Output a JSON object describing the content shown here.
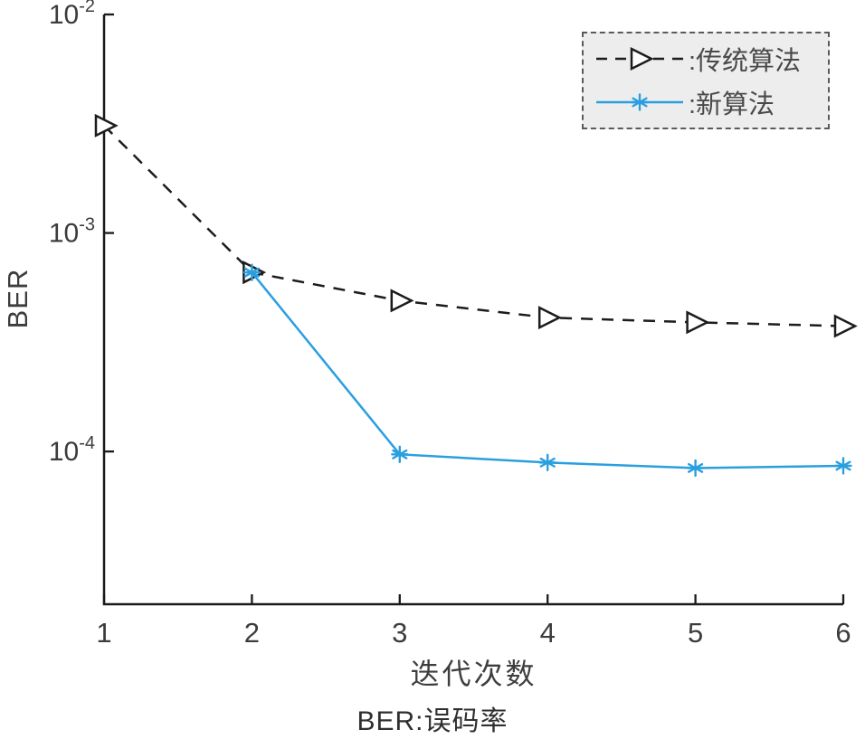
{
  "figure": {
    "y_axis_label": "BER",
    "x_axis_label": "迭代次数",
    "caption": "BER:误码率"
  },
  "legend": {
    "items": [
      {
        "label": ":传统算法",
        "series": "traditional"
      },
      {
        "label": ":新算法",
        "series": "new"
      }
    ]
  },
  "chart_data": {
    "type": "line",
    "title": "",
    "xlabel": "迭代次数",
    "ylabel": "BER",
    "caption": "BER:误码率",
    "yscale": "log",
    "xlim": [
      1,
      6
    ],
    "ylim": [
      2e-05,
      0.01
    ],
    "xticks": [
      1,
      2,
      3,
      4,
      5,
      6
    ],
    "ytick_exponents": [
      -2,
      -3,
      -4
    ],
    "grid": false,
    "legend_position": "top-right",
    "axis_color": "#1a1a1a",
    "tick_label_color": "#3c3c3c",
    "series": [
      {
        "name": "传统算法",
        "color": "#1c1c1c",
        "line_style": "dashed",
        "marker": "triangle-right",
        "x": [
          1,
          2,
          3,
          4,
          5,
          6
        ],
        "values": [
          0.0031,
          0.00066,
          0.00049,
          0.00041,
          0.00039,
          0.000375
        ]
      },
      {
        "name": "新算法",
        "color": "#2a9fe0",
        "line_style": "solid",
        "marker": "asterisk",
        "x": [
          2,
          3,
          4,
          5,
          6
        ],
        "values": [
          0.00066,
          9.7e-05,
          8.9e-05,
          8.4e-05,
          8.6e-05
        ]
      }
    ]
  }
}
